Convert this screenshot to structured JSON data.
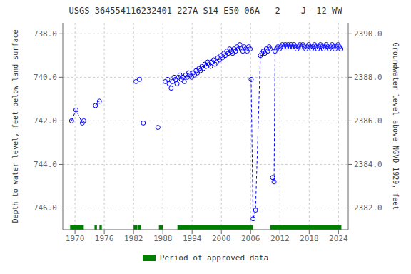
{
  "chart_data": {
    "type": "scatter",
    "title": "USGS 364554116232401 227A S14 E50 06A   2    J -12 WW",
    "ylabel": "Depth to water level, feet below land surface",
    "y2label": "Groundwater level above NGVD 1929, feet",
    "xlim": [
      1967.5,
      2026
    ],
    "xticks": [
      1970,
      1976,
      1982,
      1988,
      1994,
      2000,
      2006,
      2012,
      2018,
      2024
    ],
    "ylim": [
      747.0,
      737.5
    ],
    "yticks": [
      {
        "value": 738.0,
        "label": "738.0"
      },
      {
        "value": 740.0,
        "label": "740.0"
      },
      {
        "value": 742.0,
        "label": "742.0"
      },
      {
        "value": 744.0,
        "label": "744.0"
      },
      {
        "value": 746.0,
        "label": "746.0"
      }
    ],
    "y2lim": [
      2381.0,
      2390.5
    ],
    "y2ticks": [
      {
        "value": 2382.0,
        "label": "2382.0"
      },
      {
        "value": 2384.0,
        "label": "2384.0"
      },
      {
        "value": 2386.0,
        "label": "2386.0"
      },
      {
        "value": 2388.0,
        "label": "2388.0"
      },
      {
        "value": 2390.0,
        "label": "2390.0"
      }
    ],
    "grid": true,
    "legend": "bottom",
    "series": [
      {
        "type": "scatter",
        "color": "#0000ff",
        "marker": "circle",
        "x": [
          1969.3,
          1970.2,
          1971.5,
          1971.8,
          1974.2,
          1975.0,
          1982.5,
          1983.2,
          1984.0,
          1987.0,
          1988.5,
          1989.0,
          1989.3,
          1989.7,
          1990.0,
          1990.3,
          1990.6,
          1990.9,
          1991.2,
          1991.5,
          1991.8,
          1992.1,
          1992.4,
          1992.7,
          1993.0,
          1993.3,
          1993.6,
          1993.9,
          1994.2,
          1994.5,
          1994.8,
          1995.1,
          1995.4,
          1995.7,
          1996.0,
          1996.3,
          1996.6,
          1996.9,
          1997.2,
          1997.5,
          1997.8,
          1998.1,
          1998.4,
          1998.7,
          1999.0,
          1999.3,
          1999.6,
          1999.9,
          2000.2,
          2000.5,
          2000.8,
          2001.1,
          2001.4,
          2001.7,
          2002.0,
          2002.3,
          2002.6,
          2002.9,
          2003.2,
          2003.5,
          2003.8,
          2004.1,
          2004.4,
          2004.7,
          2005.0,
          2005.3,
          2005.6,
          2005.9,
          2006.1,
          2006.5,
          2007.0,
          2008.0,
          2008.3,
          2008.6,
          2008.9,
          2009.2,
          2009.5,
          2009.8,
          2010.0,
          2010.5,
          2010.8,
          2011.0,
          2011.3,
          2011.6,
          2011.9,
          2012.2,
          2012.5,
          2012.8,
          2013.1,
          2013.4,
          2013.7,
          2014.0,
          2014.3,
          2014.6,
          2014.9,
          2015.2,
          2015.5,
          2015.8,
          2016.1,
          2016.4,
          2016.7,
          2017.0,
          2017.3,
          2017.6,
          2017.9,
          2018.2,
          2018.5,
          2018.8,
          2019.1,
          2019.4,
          2019.7,
          2020.0,
          2020.3,
          2020.6,
          2020.9,
          2021.2,
          2021.5,
          2021.8,
          2022.1,
          2022.4,
          2022.7,
          2023.0,
          2023.3,
          2023.6,
          2023.9,
          2024.2,
          2024.5
        ],
        "values": [
          742.0,
          741.5,
          742.1,
          742.0,
          741.3,
          741.1,
          740.2,
          740.1,
          742.1,
          742.3,
          740.2,
          740.1,
          740.3,
          740.5,
          740.2,
          740.0,
          740.1,
          740.3,
          740.0,
          739.9,
          740.1,
          740.0,
          740.2,
          739.9,
          740.0,
          739.8,
          739.9,
          740.0,
          739.8,
          739.9,
          739.7,
          739.8,
          739.6,
          739.7,
          739.5,
          739.6,
          739.4,
          739.5,
          739.3,
          739.4,
          739.5,
          739.3,
          739.2,
          739.4,
          739.3,
          739.1,
          739.2,
          739.0,
          739.1,
          738.9,
          739.0,
          738.8,
          738.9,
          738.7,
          738.8,
          738.9,
          738.7,
          738.8,
          738.6,
          738.7,
          738.5,
          738.7,
          738.8,
          738.6,
          738.7,
          738.8,
          738.6,
          738.7,
          740.1,
          746.5,
          746.1,
          739.0,
          738.9,
          738.8,
          738.9,
          738.7,
          738.8,
          738.6,
          738.7,
          744.6,
          744.8,
          738.8,
          738.7,
          738.6,
          738.7,
          738.6,
          738.5,
          738.6,
          738.5,
          738.6,
          738.5,
          738.6,
          738.5,
          738.6,
          738.5,
          738.6,
          738.7,
          738.6,
          738.5,
          738.6,
          738.5,
          738.6,
          738.7,
          738.6,
          738.5,
          738.6,
          738.7,
          738.6,
          738.5,
          738.6,
          738.7,
          738.6,
          738.5,
          738.6,
          738.7,
          738.6,
          738.5,
          738.6,
          738.7,
          738.6,
          738.5,
          738.6,
          738.7,
          738.6,
          738.5,
          738.6,
          738.7
        ]
      },
      {
        "type": "line",
        "line_style": "dashed",
        "color": "#0000ff",
        "x": [
          1969.3,
          1970.2,
          1971.5,
          1971.8
        ],
        "values": [
          742.0,
          741.5,
          742.1,
          742.0
        ]
      },
      {
        "type": "line",
        "line_style": "dashed",
        "color": "#0000ff",
        "x": [
          1974.2,
          1975.0
        ],
        "values": [
          741.3,
          741.1
        ]
      },
      {
        "type": "line",
        "line_style": "dashed",
        "color": "#0000ff",
        "x": [
          2006.1,
          2006.5,
          2007.0,
          2008.0
        ],
        "values": [
          740.1,
          746.5,
          746.1,
          739.0
        ]
      },
      {
        "type": "line",
        "line_style": "dashed",
        "color": "#0000ff",
        "x": [
          2010.5,
          2010.8,
          2011.0
        ],
        "values": [
          744.6,
          744.8,
          738.8
        ]
      }
    ],
    "approved_periods": {
      "name": "Period of approved data",
      "color": "#008000",
      "periods": [
        [
          1969.0,
          1971.8
        ],
        [
          1974.0,
          1974.5
        ],
        [
          1975.0,
          1975.5
        ],
        [
          1982.0,
          1982.8
        ],
        [
          1983.0,
          1983.5
        ],
        [
          1987.2,
          1988.0
        ],
        [
          1991.0,
          2006.5
        ],
        [
          2010.0,
          2024.6
        ]
      ]
    }
  }
}
